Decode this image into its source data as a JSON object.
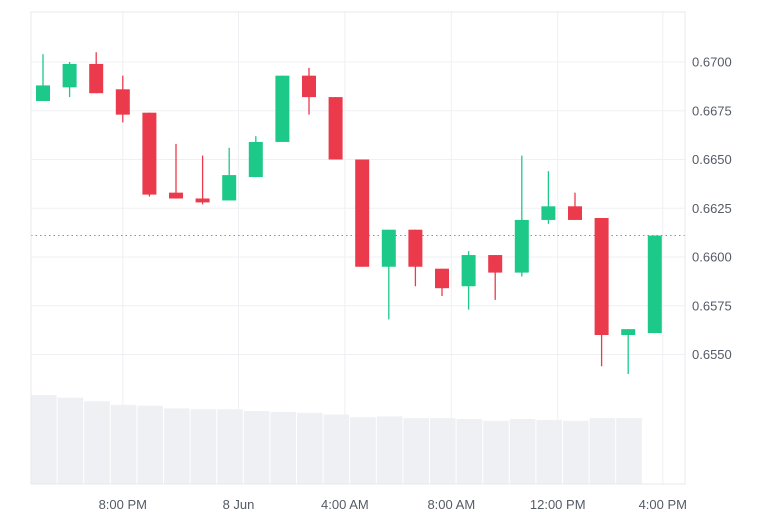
{
  "chart_data": {
    "type": "candlestick",
    "x_ticks": [
      "8:00 PM",
      "8 Jun",
      "4:00 AM",
      "8:00 AM",
      "12:00 PM",
      "4:00 PM"
    ],
    "y_ticks": [
      "0.6700",
      "0.6675",
      "0.6650",
      "0.6625",
      "0.6600",
      "0.6575",
      "0.6550"
    ],
    "ylim": [
      0.6532,
      0.6726
    ],
    "current_price": 0.6611,
    "grid": true,
    "colors": {
      "up": "#1dc989",
      "down": "#ea3a4b",
      "volume": "#eef0f3",
      "grid": "#eef0f3",
      "axis_text": "#555b66"
    },
    "candles": [
      {
        "o": 0.668,
        "h": 0.6704,
        "l": 0.668,
        "c": 0.6688
      },
      {
        "o": 0.6687,
        "h": 0.67,
        "l": 0.6682,
        "c": 0.6699
      },
      {
        "o": 0.6699,
        "h": 0.6705,
        "l": 0.6684,
        "c": 0.6684
      },
      {
        "o": 0.6686,
        "h": 0.6693,
        "l": 0.6669,
        "c": 0.6673
      },
      {
        "o": 0.6674,
        "h": 0.6674,
        "l": 0.6631,
        "c": 0.6632
      },
      {
        "o": 0.6633,
        "h": 0.6658,
        "l": 0.663,
        "c": 0.663
      },
      {
        "o": 0.663,
        "h": 0.6652,
        "l": 0.6627,
        "c": 0.6628
      },
      {
        "o": 0.6629,
        "h": 0.6656,
        "l": 0.6629,
        "c": 0.6642
      },
      {
        "o": 0.6641,
        "h": 0.6662,
        "l": 0.6641,
        "c": 0.6659
      },
      {
        "o": 0.6659,
        "h": 0.6693,
        "l": 0.6659,
        "c": 0.6693
      },
      {
        "o": 0.6693,
        "h": 0.6697,
        "l": 0.6673,
        "c": 0.6682
      },
      {
        "o": 0.6682,
        "h": 0.6682,
        "l": 0.665,
        "c": 0.665
      },
      {
        "o": 0.665,
        "h": 0.665,
        "l": 0.6595,
        "c": 0.6595
      },
      {
        "o": 0.6595,
        "h": 0.6614,
        "l": 0.6568,
        "c": 0.6614
      },
      {
        "o": 0.6614,
        "h": 0.6614,
        "l": 0.6585,
        "c": 0.6595
      },
      {
        "o": 0.6594,
        "h": 0.6594,
        "l": 0.658,
        "c": 0.6584
      },
      {
        "o": 0.6585,
        "h": 0.6603,
        "l": 0.6573,
        "c": 0.6601
      },
      {
        "o": 0.6601,
        "h": 0.6601,
        "l": 0.6578,
        "c": 0.6592
      },
      {
        "o": 0.6592,
        "h": 0.6652,
        "l": 0.659,
        "c": 0.6619
      },
      {
        "o": 0.6619,
        "h": 0.6644,
        "l": 0.6617,
        "c": 0.6626
      },
      {
        "o": 0.6626,
        "h": 0.6633,
        "l": 0.6619,
        "c": 0.6619
      },
      {
        "o": 0.662,
        "h": 0.662,
        "l": 0.6544,
        "c": 0.656
      },
      {
        "o": 0.656,
        "h": 0.6563,
        "l": 0.654,
        "c": 0.6563
      },
      {
        "o": 0.6561,
        "h": 0.6611,
        "l": 0.6561,
        "c": 0.6611
      }
    ],
    "volume": [
      1.0,
      0.97,
      0.93,
      0.89,
      0.88,
      0.85,
      0.84,
      0.84,
      0.82,
      0.81,
      0.8,
      0.78,
      0.75,
      0.76,
      0.74,
      0.74,
      0.73,
      0.71,
      0.73,
      0.72,
      0.71,
      0.74,
      0.74
    ]
  }
}
